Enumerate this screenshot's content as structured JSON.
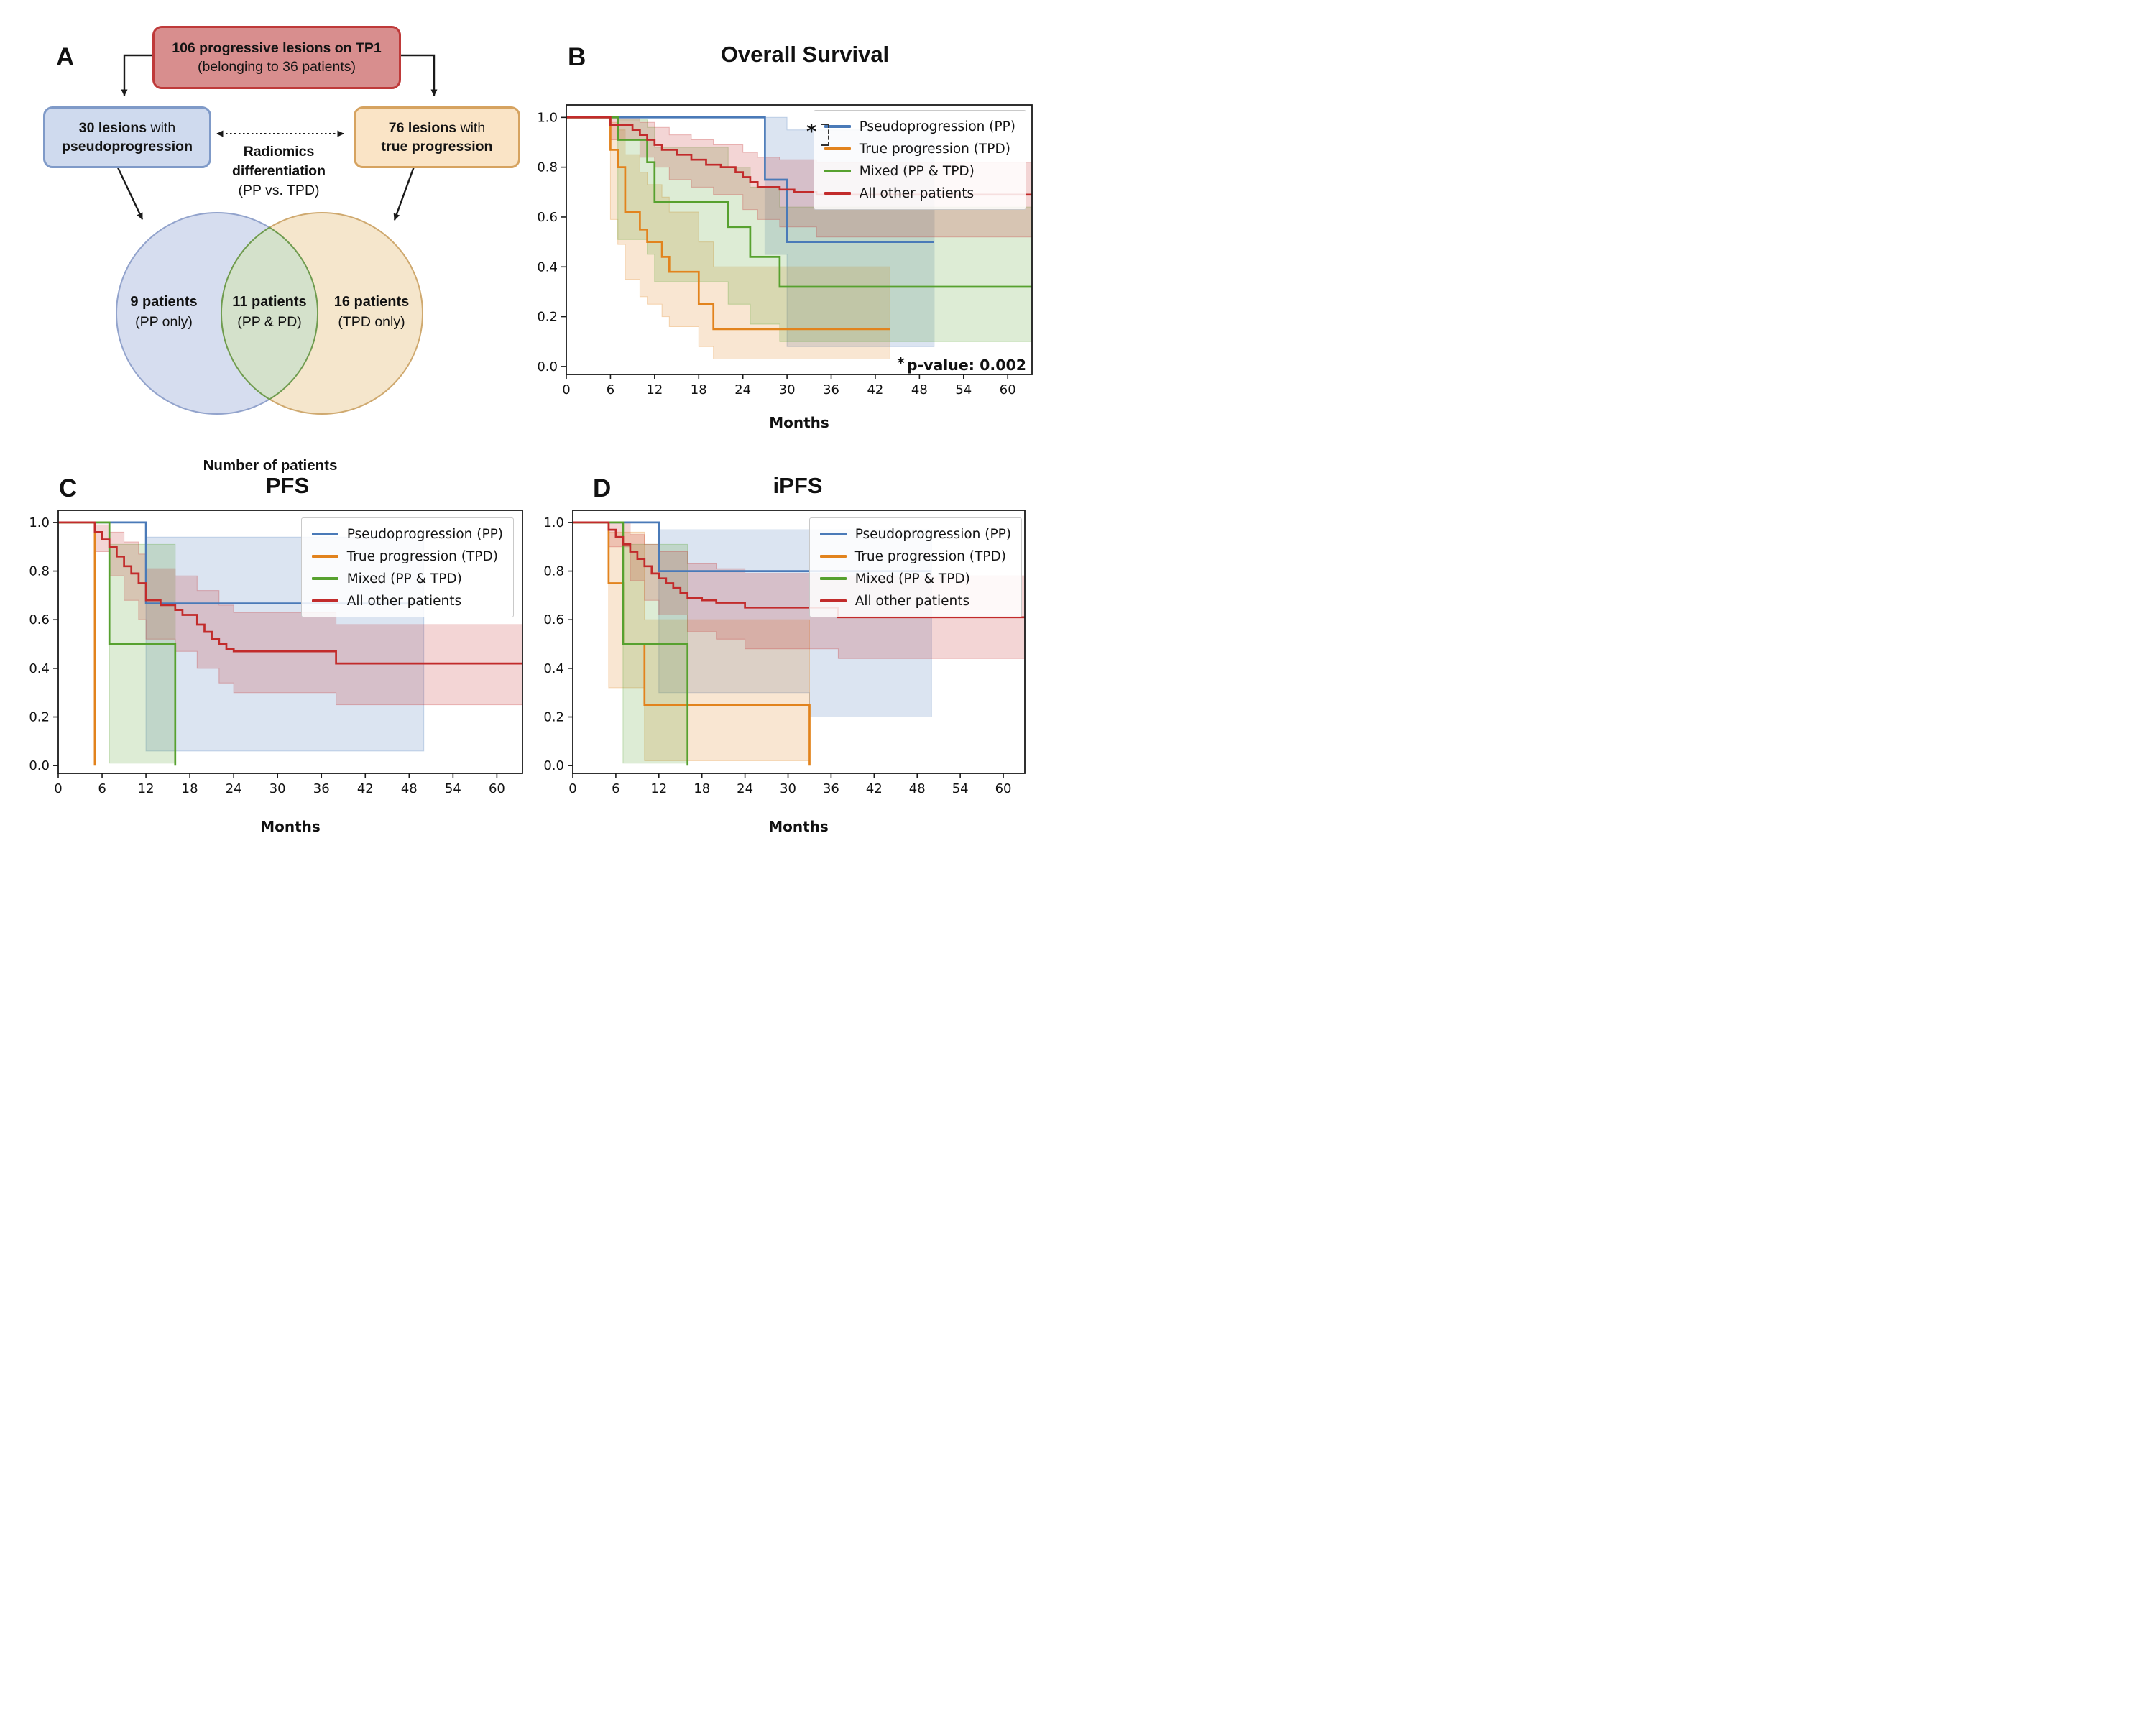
{
  "panel_a": {
    "letter": "A",
    "root_box": {
      "line1": "106 progressive lesions on TP1",
      "line2": "(belonging to 36 patients)"
    },
    "left_box": {
      "count": "30 lesions",
      "suffix": " with",
      "line2": "pseudoprogression"
    },
    "right_box": {
      "count": "76 lesions",
      "suffix": " with",
      "line2": "true progression"
    },
    "radiomics": {
      "line1": "Radiomics",
      "line2": "differentiation",
      "line3": "(PP vs. TPD)"
    },
    "venn": {
      "left": {
        "count": "9 patients",
        "label": "(PP only)"
      },
      "middle": {
        "count": "11 patients",
        "label": "(PP & PD)"
      },
      "right": {
        "count": "16 patients",
        "label": "(TPD only)"
      },
      "caption": "Number of patients"
    },
    "colors": {
      "root_fill": "#d88e8e",
      "root_border": "#bf3a3a",
      "left_fill": "#cfdaee",
      "left_border": "#7f9ac8",
      "right_fill": "#fae4c6",
      "right_border": "#d6a360",
      "venn_left_fill": "#aebcdf",
      "venn_left_stroke": "#92a3cc",
      "venn_right_fill": "#ecd2a2",
      "venn_right_stroke": "#cfa96f",
      "venn_overlap_fill": "#d3e2cb",
      "venn_overlap_stroke": "#6f9c4f",
      "arrow": "#1a1a1a"
    }
  },
  "chart_data": [
    {
      "id": "os",
      "type": "line",
      "panel_letter": "B",
      "title": "Overall Survival",
      "xlabel": "Months",
      "xticks": [
        0,
        6,
        12,
        18,
        24,
        30,
        36,
        42,
        48,
        54,
        60
      ],
      "yticks": [
        0.0,
        0.2,
        0.4,
        0.6,
        0.8,
        1.0
      ],
      "xlim": [
        0,
        63.3
      ],
      "ylim": [
        -0.032,
        1.05
      ],
      "legend_position": "upper right",
      "annotation_star": "*",
      "annotation": "p-value: 0.002",
      "significance": {
        "star": "*",
        "compares": [
          "Pseudoprogression (PP)",
          "True progression (TPD)"
        ]
      },
      "series": [
        {
          "name": "Pseudoprogression (PP)",
          "color": "#4a7ab8",
          "start": 1.0,
          "end": 50,
          "steps": [
            [
              27,
              0.75
            ],
            [
              30,
              0.5
            ]
          ],
          "ci": [
            [
              27,
              0.45,
              1.0
            ],
            [
              30,
              0.08,
              0.95
            ],
            [
              50,
              0.08,
              0.95
            ]
          ]
        },
        {
          "name": "True progression (TPD)",
          "color": "#e2831d",
          "start": 1.0,
          "end": 44,
          "steps": [
            [
              6,
              0.87
            ],
            [
              7,
              0.8
            ],
            [
              8,
              0.62
            ],
            [
              10,
              0.55
            ],
            [
              11,
              0.5
            ],
            [
              13,
              0.44
            ],
            [
              14,
              0.38
            ],
            [
              18,
              0.25
            ],
            [
              20,
              0.15
            ]
          ],
          "ci": [
            [
              6,
              0.59,
              0.98
            ],
            [
              7,
              0.49,
              0.95
            ],
            [
              8,
              0.35,
              0.85
            ],
            [
              10,
              0.28,
              0.78
            ],
            [
              11,
              0.25,
              0.73
            ],
            [
              13,
              0.2,
              0.68
            ],
            [
              14,
              0.16,
              0.62
            ],
            [
              18,
              0.08,
              0.5
            ],
            [
              20,
              0.03,
              0.4
            ],
            [
              44,
              0.03,
              0.4
            ]
          ]
        },
        {
          "name": "Mixed (PP & TPD)",
          "color": "#57a12f",
          "start": 1.0,
          "end": 66,
          "steps": [
            [
              7,
              0.91
            ],
            [
              11,
              0.82
            ],
            [
              12,
              0.66
            ],
            [
              22,
              0.56
            ],
            [
              25,
              0.44
            ],
            [
              29,
              0.32
            ]
          ],
          "ci": [
            [
              7,
              0.51,
              0.99
            ],
            [
              11,
              0.45,
              0.96
            ],
            [
              12,
              0.34,
              0.88
            ],
            [
              22,
              0.25,
              0.8
            ],
            [
              25,
              0.17,
              0.72
            ],
            [
              29,
              0.1,
              0.64
            ],
            [
              66,
              0.1,
              0.64
            ]
          ]
        },
        {
          "name": "All other patients",
          "color": "#c22b2b",
          "start": 1.0,
          "end": 66,
          "steps": [
            [
              6,
              0.97
            ],
            [
              9,
              0.95
            ],
            [
              10,
              0.93
            ],
            [
              11,
              0.91
            ],
            [
              12,
              0.89
            ],
            [
              13,
              0.87
            ],
            [
              15,
              0.85
            ],
            [
              17,
              0.83
            ],
            [
              19,
              0.81
            ],
            [
              21,
              0.8
            ],
            [
              23,
              0.78
            ],
            [
              24,
              0.76
            ],
            [
              25,
              0.74
            ],
            [
              26,
              0.72
            ],
            [
              29,
              0.71
            ],
            [
              31,
              0.7
            ],
            [
              34,
              0.69
            ]
          ],
          "ci": [
            [
              6,
              0.91,
              1.0
            ],
            [
              10,
              0.84,
              0.98
            ],
            [
              12,
              0.8,
              0.96
            ],
            [
              14,
              0.75,
              0.93
            ],
            [
              17,
              0.72,
              0.91
            ],
            [
              20,
              0.69,
              0.89
            ],
            [
              24,
              0.63,
              0.86
            ],
            [
              26,
              0.59,
              0.84
            ],
            [
              29,
              0.56,
              0.83
            ],
            [
              34,
              0.52,
              0.82
            ],
            [
              66,
              0.52,
              0.82
            ]
          ]
        }
      ]
    },
    {
      "id": "pfs",
      "type": "line",
      "panel_letter": "C",
      "title": "PFS",
      "xlabel": "Months",
      "xticks": [
        0,
        6,
        12,
        18,
        24,
        30,
        36,
        42,
        48,
        54,
        60
      ],
      "yticks": [
        0.0,
        0.2,
        0.4,
        0.6,
        0.8,
        1.0
      ],
      "xlim": [
        0,
        63.5
      ],
      "ylim": [
        -0.032,
        1.05
      ],
      "legend_position": "upper right",
      "series": [
        {
          "name": "Pseudoprogression (PP)",
          "color": "#4a7ab8",
          "start": 1.0,
          "end": 50,
          "steps": [
            [
              12,
              0.667
            ]
          ],
          "ci": [
            [
              12,
              0.06,
              0.94
            ],
            [
              50,
              0.06,
              0.94
            ]
          ]
        },
        {
          "name": "True progression (TPD)",
          "color": "#e2831d",
          "start": 1.0,
          "end": 5,
          "steps": [
            [
              5,
              0.0
            ]
          ],
          "ci": null
        },
        {
          "name": "Mixed (PP & TPD)",
          "color": "#57a12f",
          "start": 1.0,
          "end": 16,
          "steps": [
            [
              7,
              0.5
            ],
            [
              16,
              0.0
            ]
          ],
          "ci": [
            [
              7,
              0.01,
              0.91
            ],
            [
              16,
              0.01,
              0.91
            ]
          ]
        },
        {
          "name": "All other patients",
          "color": "#c22b2b",
          "start": 1.0,
          "end": 66,
          "steps": [
            [
              5,
              0.96
            ],
            [
              6,
              0.93
            ],
            [
              7,
              0.9
            ],
            [
              8,
              0.86
            ],
            [
              9,
              0.82
            ],
            [
              10,
              0.79
            ],
            [
              11,
              0.75
            ],
            [
              12,
              0.68
            ],
            [
              14,
              0.66
            ],
            [
              16,
              0.64
            ],
            [
              17,
              0.62
            ],
            [
              19,
              0.58
            ],
            [
              20,
              0.55
            ],
            [
              21,
              0.52
            ],
            [
              22,
              0.5
            ],
            [
              23,
              0.48
            ],
            [
              24,
              0.47
            ],
            [
              38,
              0.42
            ]
          ],
          "ci": [
            [
              5,
              0.88,
              0.99
            ],
            [
              7,
              0.78,
              0.96
            ],
            [
              9,
              0.68,
              0.92
            ],
            [
              11,
              0.6,
              0.87
            ],
            [
              12,
              0.52,
              0.81
            ],
            [
              16,
              0.47,
              0.78
            ],
            [
              19,
              0.4,
              0.72
            ],
            [
              22,
              0.34,
              0.66
            ],
            [
              24,
              0.3,
              0.63
            ],
            [
              38,
              0.25,
              0.58
            ],
            [
              66,
              0.25,
              0.58
            ]
          ]
        }
      ]
    },
    {
      "id": "ipfs",
      "type": "line",
      "panel_letter": "D",
      "title": "iPFS",
      "xlabel": "Months",
      "xticks": [
        0,
        6,
        12,
        18,
        24,
        30,
        36,
        42,
        48,
        54,
        60
      ],
      "yticks": [
        0.0,
        0.2,
        0.4,
        0.6,
        0.8,
        1.0
      ],
      "xlim": [
        0,
        63
      ],
      "ylim": [
        -0.032,
        1.05
      ],
      "legend_position": "upper right",
      "series": [
        {
          "name": "Pseudoprogression (PP)",
          "color": "#4a7ab8",
          "start": 1.0,
          "end": 50,
          "steps": [
            [
              12,
              0.8
            ]
          ],
          "ci": [
            [
              12,
              0.3,
              0.97
            ],
            [
              33,
              0.2,
              0.97
            ],
            [
              50,
              0.2,
              0.97
            ]
          ]
        },
        {
          "name": "True progression (TPD)",
          "color": "#e2831d",
          "start": 1.0,
          "end": 33,
          "steps": [
            [
              5,
              0.75
            ],
            [
              7,
              0.5
            ],
            [
              10,
              0.25
            ],
            [
              33,
              0.0
            ]
          ],
          "ci": [
            [
              5,
              0.32,
              0.96
            ],
            [
              10,
              0.02,
              0.6
            ],
            [
              33,
              0.02,
              0.6
            ]
          ]
        },
        {
          "name": "Mixed (PP & TPD)",
          "color": "#57a12f",
          "start": 1.0,
          "end": 16,
          "steps": [
            [
              7,
              0.5
            ],
            [
              16,
              0.0
            ]
          ],
          "ci": [
            [
              7,
              0.01,
              0.91
            ],
            [
              16,
              0.01,
              0.91
            ]
          ]
        },
        {
          "name": "All other patients",
          "color": "#c22b2b",
          "start": 1.0,
          "end": 66,
          "steps": [
            [
              5,
              0.97
            ],
            [
              6,
              0.94
            ],
            [
              7,
              0.91
            ],
            [
              8,
              0.88
            ],
            [
              9,
              0.85
            ],
            [
              10,
              0.82
            ],
            [
              11,
              0.79
            ],
            [
              12,
              0.77
            ],
            [
              13,
              0.75
            ],
            [
              14,
              0.73
            ],
            [
              15,
              0.71
            ],
            [
              16,
              0.69
            ],
            [
              18,
              0.68
            ],
            [
              20,
              0.67
            ],
            [
              24,
              0.65
            ],
            [
              37,
              0.61
            ]
          ],
          "ci": [
            [
              5,
              0.9,
              1.0
            ],
            [
              8,
              0.76,
              0.95
            ],
            [
              10,
              0.68,
              0.91
            ],
            [
              12,
              0.62,
              0.88
            ],
            [
              16,
              0.55,
              0.83
            ],
            [
              20,
              0.52,
              0.81
            ],
            [
              24,
              0.48,
              0.79
            ],
            [
              37,
              0.44,
              0.78
            ],
            [
              66,
              0.44,
              0.78
            ]
          ]
        }
      ]
    }
  ]
}
